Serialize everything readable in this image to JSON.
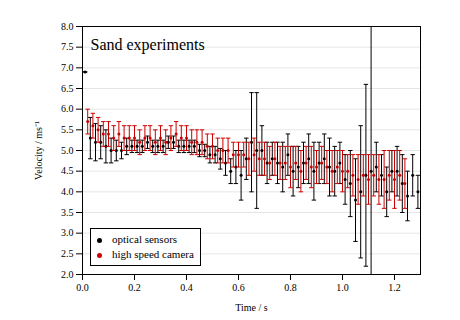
{
  "chart_data": {
    "type": "scatter",
    "title": "Sand experiments",
    "x_label": "Time / s",
    "y_label": "Velocity / ms⁻¹",
    "xlim": [
      0,
      1.3
    ],
    "xticks": [
      {
        "value": 0,
        "label": "0.0"
      },
      0.2,
      0.4,
      0.6,
      0.8,
      {
        "value": 1,
        "label": "1.0"
      },
      1.2
    ],
    "ylim": [
      2,
      8
    ],
    "yticks": [
      {
        "value": 2,
        "label": "2.0"
      },
      2.5,
      {
        "value": 3,
        "label": "3.0"
      },
      3.5,
      {
        "value": 4,
        "label": "4.0"
      },
      4.5,
      {
        "value": 5,
        "label": "5.0"
      },
      5.5,
      {
        "value": 6,
        "label": "6.0"
      },
      6.5,
      {
        "value": 7,
        "label": "7.0"
      },
      7.5,
      {
        "value": 8,
        "label": "8.0"
      }
    ],
    "grid": true,
    "legend": "lower left",
    "series": [
      {
        "name": "optical sensors",
        "color": "#000000",
        "marker": "circle",
        "x": [
          0.01,
          0.03,
          0.05,
          0.07,
          0.09,
          0.11,
          0.13,
          0.15,
          0.17,
          0.19,
          0.21,
          0.23,
          0.25,
          0.27,
          0.29,
          0.31,
          0.33,
          0.35,
          0.37,
          0.39,
          0.41,
          0.43,
          0.45,
          0.47,
          0.49,
          0.51,
          0.53,
          0.55,
          0.57,
          0.59,
          0.61,
          0.63,
          0.65,
          0.67,
          0.69,
          0.71,
          0.73,
          0.75,
          0.77,
          0.79,
          0.81,
          0.83,
          0.85,
          0.87,
          0.89,
          0.91,
          0.93,
          0.95,
          0.97,
          0.99,
          1.01,
          1.03,
          1.05,
          1.07,
          1.09,
          1.11,
          1.13,
          1.15,
          1.17,
          1.19,
          1.21,
          1.23,
          1.25,
          1.27,
          1.29
        ],
        "values": [
          6.9,
          5.3,
          5.2,
          5.2,
          5.1,
          5.0,
          5.0,
          5.0,
          5.1,
          5.1,
          5.1,
          5.1,
          5.2,
          5.1,
          5.1,
          5.1,
          5.2,
          5.2,
          5.1,
          5.1,
          5.1,
          5.1,
          5.0,
          5.0,
          4.9,
          4.9,
          4.8,
          4.7,
          4.5,
          4.6,
          4.4,
          4.8,
          5.2,
          5.0,
          5.0,
          4.7,
          4.8,
          4.7,
          4.6,
          4.9,
          4.5,
          4.6,
          4.7,
          4.8,
          4.5,
          4.7,
          4.8,
          4.6,
          4.5,
          4.7,
          4.3,
          4.2,
          3.8,
          4.0,
          4.4,
          4.5,
          4.6,
          4.4,
          4.0,
          4.5,
          4.5,
          4.2,
          3.9,
          4.4,
          4.0
        ],
        "errors": [
          0,
          0.5,
          0.45,
          0.4,
          0.4,
          0.3,
          0.25,
          0.2,
          0.2,
          0.15,
          0.15,
          0.15,
          0.15,
          0.15,
          0.15,
          0.15,
          0.15,
          0.15,
          0.15,
          0.15,
          0.15,
          0.15,
          0.15,
          0.15,
          0.2,
          0.2,
          0.25,
          0.3,
          0.3,
          0.4,
          0.6,
          0.5,
          1.2,
          1.4,
          0.6,
          0.5,
          0.4,
          0.5,
          0.6,
          0.5,
          0.6,
          0.5,
          0.5,
          0.6,
          0.7,
          0.5,
          0.6,
          0.7,
          0.6,
          0.5,
          0.6,
          0.8,
          1.0,
          1.6,
          2.2,
          3.5,
          0.6,
          0.5,
          0.6,
          0.5,
          0.6,
          0.7,
          0.6,
          0.5,
          0.4
        ]
      },
      {
        "name": "high speed camera",
        "color": "#cc0000",
        "marker": "circle",
        "x": [
          0.02,
          0.04,
          0.06,
          0.08,
          0.1,
          0.12,
          0.14,
          0.16,
          0.18,
          0.2,
          0.22,
          0.24,
          0.26,
          0.28,
          0.3,
          0.32,
          0.34,
          0.36,
          0.38,
          0.4,
          0.42,
          0.44,
          0.46,
          0.48,
          0.5,
          0.52,
          0.54,
          0.56,
          0.58,
          0.6,
          0.62,
          0.64,
          0.66,
          0.68,
          0.7,
          0.72,
          0.74,
          0.76,
          0.78,
          0.8,
          0.82,
          0.84,
          0.86,
          0.88,
          0.9,
          0.92,
          0.94,
          0.96,
          0.98,
          1.0,
          1.02,
          1.04,
          1.06,
          1.08,
          1.1,
          1.12,
          1.14,
          1.16,
          1.18,
          1.2,
          1.22,
          1.24
        ],
        "values": [
          5.7,
          5.6,
          5.5,
          5.4,
          5.4,
          5.3,
          5.4,
          5.3,
          5.3,
          5.3,
          5.2,
          5.3,
          5.3,
          5.2,
          5.3,
          5.2,
          5.3,
          5.4,
          5.3,
          5.3,
          5.2,
          5.2,
          5.2,
          5.1,
          5.1,
          5.0,
          5.0,
          5.0,
          4.9,
          4.9,
          4.9,
          4.8,
          4.9,
          4.8,
          4.8,
          4.7,
          4.8,
          4.7,
          4.7,
          4.6,
          4.7,
          4.5,
          4.7,
          4.6,
          4.6,
          4.7,
          4.6,
          4.5,
          4.6,
          4.5,
          4.5,
          4.4,
          4.3,
          4.4,
          4.3,
          4.4,
          4.3,
          4.3,
          4.4,
          4.3,
          4.4,
          4.2
        ],
        "errors": [
          0.3,
          0.3,
          0.3,
          0.3,
          0.3,
          0.3,
          0.3,
          0.3,
          0.3,
          0.3,
          0.3,
          0.3,
          0.3,
          0.3,
          0.3,
          0.3,
          0.3,
          0.3,
          0.3,
          0.3,
          0.3,
          0.3,
          0.3,
          0.3,
          0.3,
          0.3,
          0.3,
          0.3,
          0.3,
          0.3,
          0.3,
          0.4,
          0.4,
          0.4,
          0.4,
          0.4,
          0.4,
          0.4,
          0.4,
          0.5,
          0.4,
          0.5,
          0.4,
          0.5,
          0.4,
          0.4,
          0.4,
          0.5,
          0.4,
          0.5,
          0.4,
          0.5,
          0.6,
          0.5,
          0.6,
          0.5,
          0.6,
          0.7,
          0.6,
          0.7,
          0.6,
          0.6
        ]
      }
    ]
  }
}
